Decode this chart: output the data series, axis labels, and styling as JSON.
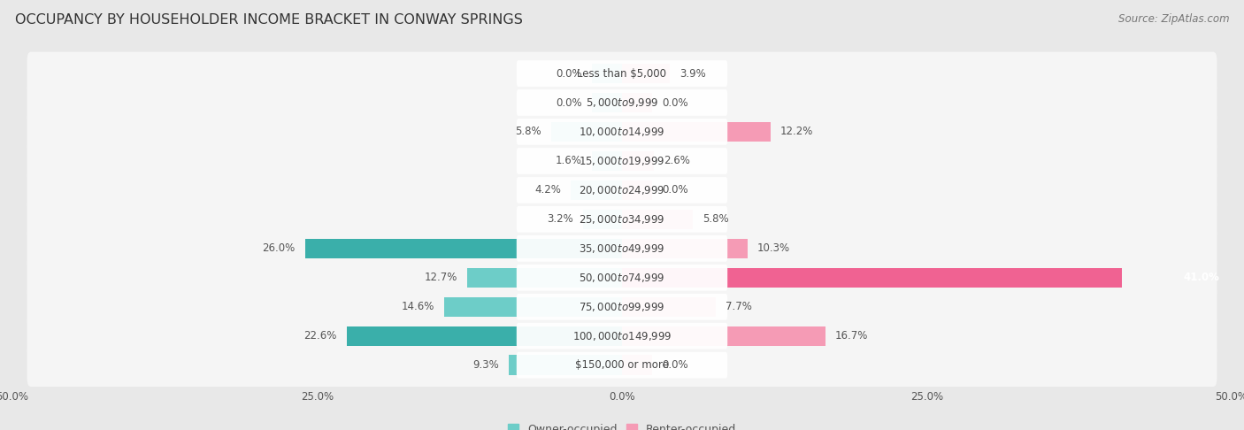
{
  "title": "OCCUPANCY BY HOUSEHOLDER INCOME BRACKET IN CONWAY SPRINGS",
  "source": "Source: ZipAtlas.com",
  "categories": [
    "Less than $5,000",
    "$5,000 to $9,999",
    "$10,000 to $14,999",
    "$15,000 to $19,999",
    "$20,000 to $24,999",
    "$25,000 to $34,999",
    "$35,000 to $49,999",
    "$50,000 to $74,999",
    "$75,000 to $99,999",
    "$100,000 to $149,999",
    "$150,000 or more"
  ],
  "owner_values": [
    0.0,
    0.0,
    5.8,
    1.6,
    4.2,
    3.2,
    26.0,
    12.7,
    14.6,
    22.6,
    9.3
  ],
  "renter_values": [
    3.9,
    0.0,
    12.2,
    2.6,
    0.0,
    5.8,
    10.3,
    41.0,
    7.7,
    16.7,
    0.0
  ],
  "owner_color": "#6dcdc8",
  "owner_color_dark": "#3aafaa",
  "renter_color": "#f59bb5",
  "renter_color_dark": "#f06292",
  "xlim": 50.0,
  "min_bar": 2.5,
  "background_color": "#e8e8e8",
  "row_color": "#f5f5f5",
  "title_fontsize": 11.5,
  "source_fontsize": 8.5,
  "label_fontsize": 8.5,
  "category_fontsize": 8.5,
  "legend_fontsize": 9,
  "tick_fontsize": 8.5
}
